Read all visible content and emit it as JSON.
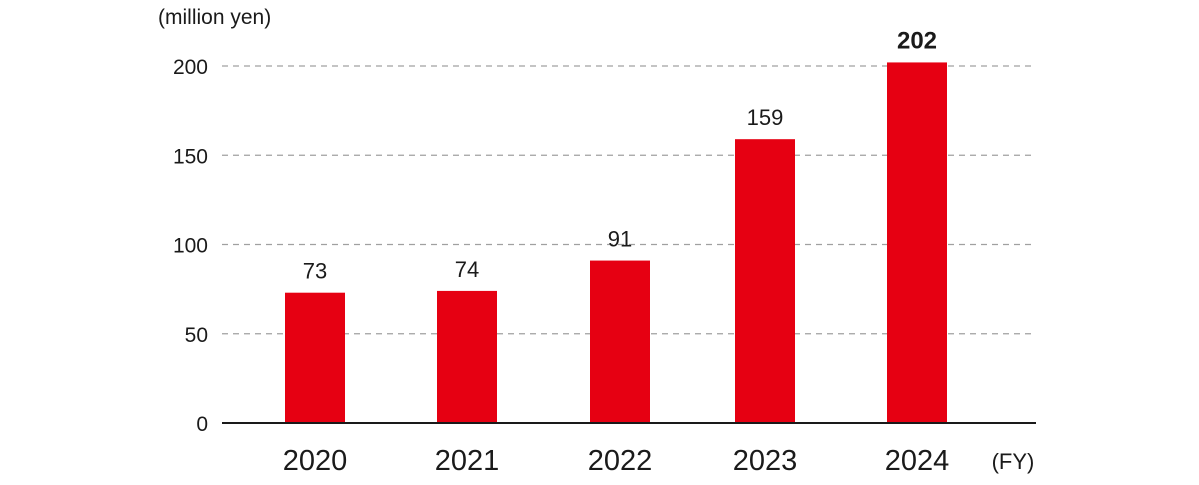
{
  "chart_data": {
    "type": "bar",
    "categories": [
      "2020",
      "2021",
      "2022",
      "2023",
      "2024"
    ],
    "values": [
      73,
      74,
      91,
      159,
      202
    ],
    "data_labels": [
      "73",
      "74",
      "91",
      "159",
      "202"
    ],
    "emphasized_index": 4,
    "ylabel": "(million yen)",
    "xlabel": "(FY)",
    "ylim": [
      0,
      200
    ],
    "yticks": [
      0,
      50,
      100,
      150,
      200
    ],
    "ytick_labels": [
      "0",
      "50",
      "100",
      "150",
      "200"
    ],
    "grid": "horizontal dashed",
    "bar_color": "#e60012",
    "grid_color": "#a0a0a0",
    "axis_color": "#1a1a1a"
  }
}
